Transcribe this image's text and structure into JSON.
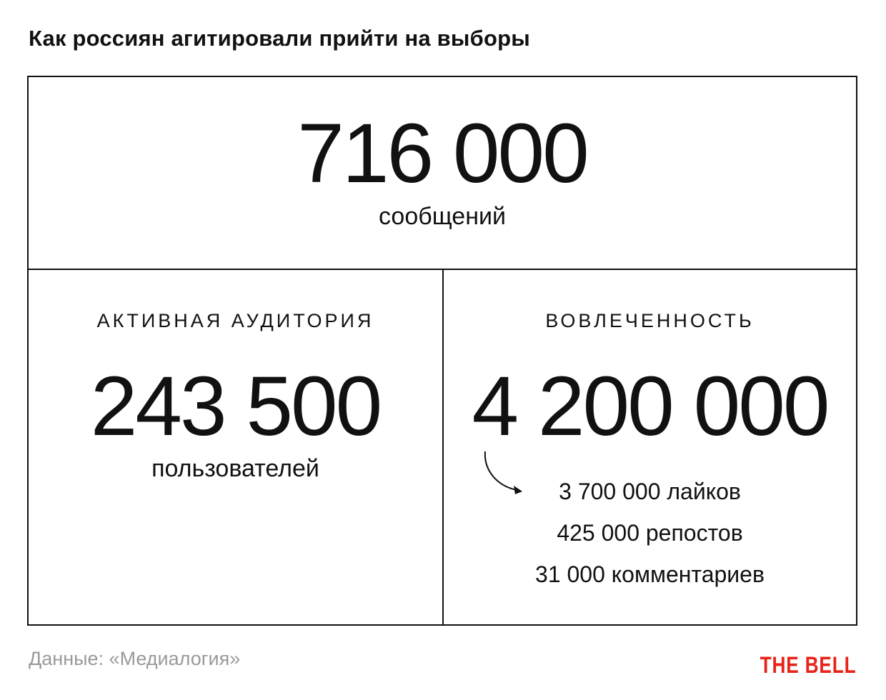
{
  "title": "Как россиян агитировали прийти на выборы",
  "top_stat": {
    "value": "716 000",
    "label": "сообщений"
  },
  "audience": {
    "heading": "АКТИВНАЯ АУДИТОРИЯ",
    "value": "243 500",
    "label": "пользователей"
  },
  "engagement": {
    "heading": "ВОВЛЕЧЕННОСТЬ",
    "value": "4 200 000",
    "breakdown": [
      "3 700 000 лайков",
      "425 000 репостов",
      "31 000 комментариев"
    ]
  },
  "footer": {
    "source": "Данные: «Медиалогия»",
    "brand": "THE BELL"
  },
  "colors": {
    "text": "#111111",
    "border": "#111111",
    "source_text": "#9a9a9a",
    "brand": "#e8231a"
  },
  "icons": {
    "breakdown_arrow": "curved-arrow-icon"
  }
}
